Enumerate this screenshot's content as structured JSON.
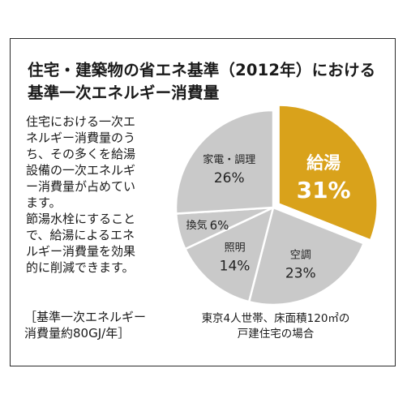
{
  "title_lines": [
    "住宅・建築物の省エネ基準（2012年）における",
    "基準一次エネルギー消費量"
  ],
  "description_lines": [
    "住宅における一次エ",
    "ネルギー消費量のう",
    "ち、その多くを給湯",
    "設備の一次エネルギ",
    "ー消費量が占めてい",
    "ます。",
    "節湯水栓にすること",
    "で、給湯によるエネ",
    "ルギー消費量を効果",
    "的に削減できます。"
  ],
  "note_lines": [
    "［基準一次エネルギー",
    "消費量約80GJ/年］"
  ],
  "caption_lines": [
    "東京4人世帯、床面積120㎡の",
    "戸建住宅の場合"
  ],
  "colors": {
    "highlight": "#d9a21b",
    "slice": "#c9c9c9",
    "stroke": "#ffffff"
  },
  "chart_data": {
    "type": "pie",
    "start_angle_deg": 0,
    "direction": "clockwise",
    "slices": [
      {
        "label": "給湯",
        "value": 31,
        "display": "31%",
        "highlight": true
      },
      {
        "label": "空調",
        "value": 23,
        "display": "23%",
        "highlight": false
      },
      {
        "label": "照明",
        "value": 14,
        "display": "14%",
        "highlight": false
      },
      {
        "label": "換気",
        "value": 6,
        "display": "6%",
        "highlight": false
      },
      {
        "label": "家電・調理",
        "value": 26,
        "display": "26%",
        "highlight": false
      }
    ]
  }
}
